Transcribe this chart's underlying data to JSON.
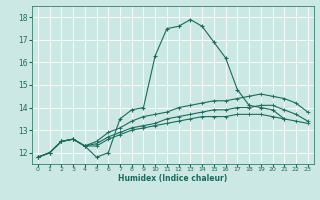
{
  "xlabel": "Humidex (Indice chaleur)",
  "ylabel": "",
  "bg_color": "#cce8e4",
  "grid_color": "#ffffff",
  "line_color": "#1a6b5a",
  "xlim": [
    -0.5,
    23.5
  ],
  "ylim": [
    11.5,
    18.5
  ],
  "xticks": [
    0,
    1,
    2,
    3,
    4,
    5,
    6,
    7,
    8,
    9,
    10,
    11,
    12,
    13,
    14,
    15,
    16,
    17,
    18,
    19,
    20,
    21,
    22,
    23
  ],
  "yticks": [
    12,
    13,
    14,
    15,
    16,
    17,
    18
  ],
  "series": [
    [
      11.8,
      12.0,
      12.5,
      12.6,
      12.3,
      11.8,
      12.0,
      13.5,
      13.9,
      14.0,
      16.3,
      17.5,
      17.6,
      17.9,
      17.6,
      16.9,
      16.2,
      14.8,
      14.1,
      14.0,
      13.9,
      13.5,
      null,
      null
    ],
    [
      11.8,
      12.0,
      12.5,
      12.6,
      12.3,
      12.5,
      12.9,
      13.1,
      13.4,
      13.6,
      13.7,
      13.8,
      14.0,
      14.1,
      14.2,
      14.3,
      14.3,
      14.4,
      14.5,
      14.6,
      14.5,
      14.4,
      14.2,
      13.8
    ],
    [
      11.8,
      12.0,
      12.5,
      12.6,
      12.3,
      12.4,
      12.7,
      12.9,
      13.1,
      13.2,
      13.3,
      13.5,
      13.6,
      13.7,
      13.8,
      13.9,
      13.9,
      14.0,
      14.0,
      14.1,
      14.1,
      13.9,
      13.7,
      13.4
    ],
    [
      11.8,
      12.0,
      12.5,
      12.6,
      12.3,
      12.3,
      12.6,
      12.8,
      13.0,
      13.1,
      13.2,
      13.3,
      13.4,
      13.5,
      13.6,
      13.6,
      13.6,
      13.7,
      13.7,
      13.7,
      13.6,
      13.5,
      13.4,
      13.3
    ]
  ]
}
